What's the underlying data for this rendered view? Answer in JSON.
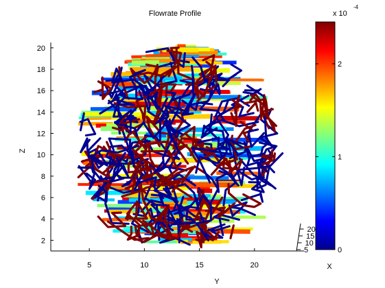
{
  "chart_data": {
    "type": "3d-network",
    "title": "Flowrate Profile",
    "ylabel": "Y",
    "zlabel": "Z",
    "y_ticks": [
      5,
      10,
      15,
      20
    ],
    "z_ticks": [
      2,
      4,
      6,
      8,
      10,
      12,
      14,
      16,
      18,
      20
    ],
    "x_ticks": [
      5,
      10,
      15,
      20
    ],
    "ylim": [
      1.5,
      24.5
    ],
    "zlim": [
      1,
      20.5
    ],
    "colorbar": {
      "label": "X",
      "exponent_text": "x 10",
      "exponent": "-4",
      "ticks": [
        0,
        1,
        2
      ],
      "range": [
        0,
        2.45
      ],
      "colormap": "jet"
    },
    "colors": {
      "high_flow": "#800000",
      "low_flow": "#00008f"
    }
  }
}
